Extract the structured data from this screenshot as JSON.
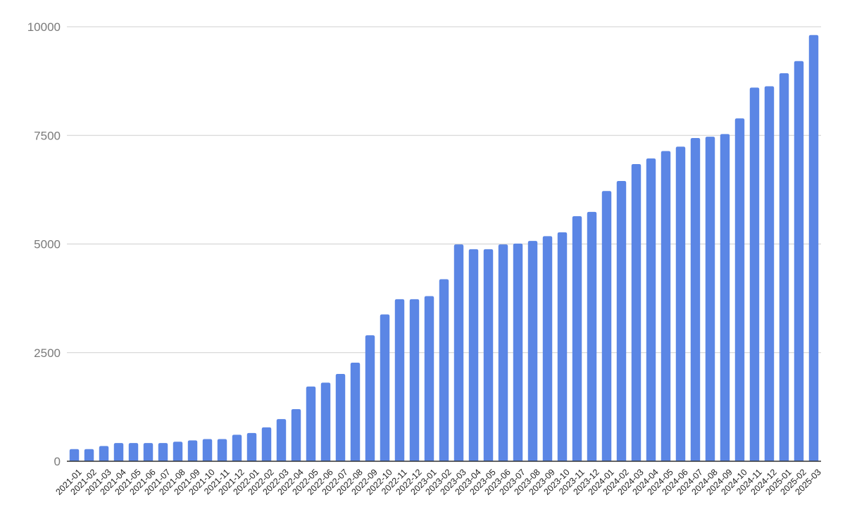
{
  "chart_data": {
    "type": "bar",
    "title": "",
    "xlabel": "",
    "ylabel": "",
    "ylim": [
      0,
      10000
    ],
    "yticks": [
      0,
      2500,
      5000,
      7500,
      10000
    ],
    "grid": true,
    "legend": "none",
    "bar_color": "#5b86e5",
    "categories": [
      "2021-01",
      "2021-02",
      "2021-03",
      "2021-04",
      "2021-05",
      "2021-06",
      "2021-07",
      "2021-08",
      "2021-09",
      "2021-10",
      "2021-11",
      "2021-12",
      "2022-01",
      "2022-02",
      "2022-03",
      "2022-04",
      "2022-05",
      "2022-06",
      "2022-07",
      "2022-08",
      "2022-09",
      "2022-10",
      "2022-11",
      "2022-12",
      "2023-01",
      "2023-02",
      "2023-03",
      "2023-04",
      "2023-05",
      "2023-06",
      "2023-07",
      "2023-08",
      "2023-09",
      "2023-10",
      "2023-11",
      "2023-12",
      "2024-01",
      "2024-02",
      "2024-03",
      "2024-04",
      "2024-05",
      "2024-06",
      "2024-07",
      "2024-08",
      "2024-09",
      "2024-10",
      "2024-11",
      "2024-12",
      "2025-01",
      "2025-02",
      "2025-03"
    ],
    "values": [
      280,
      280,
      350,
      420,
      420,
      420,
      420,
      450,
      480,
      510,
      510,
      610,
      650,
      780,
      970,
      1200,
      1720,
      1810,
      2010,
      2270,
      2900,
      3380,
      3730,
      3730,
      3800,
      4190,
      4990,
      4880,
      4880,
      4990,
      5010,
      5070,
      5180,
      5270,
      5640,
      5740,
      6220,
      6450,
      6840,
      6970,
      7140,
      7240,
      7440,
      7470,
      7530,
      7890,
      8600,
      8630,
      8930,
      9210,
      9810
    ]
  }
}
